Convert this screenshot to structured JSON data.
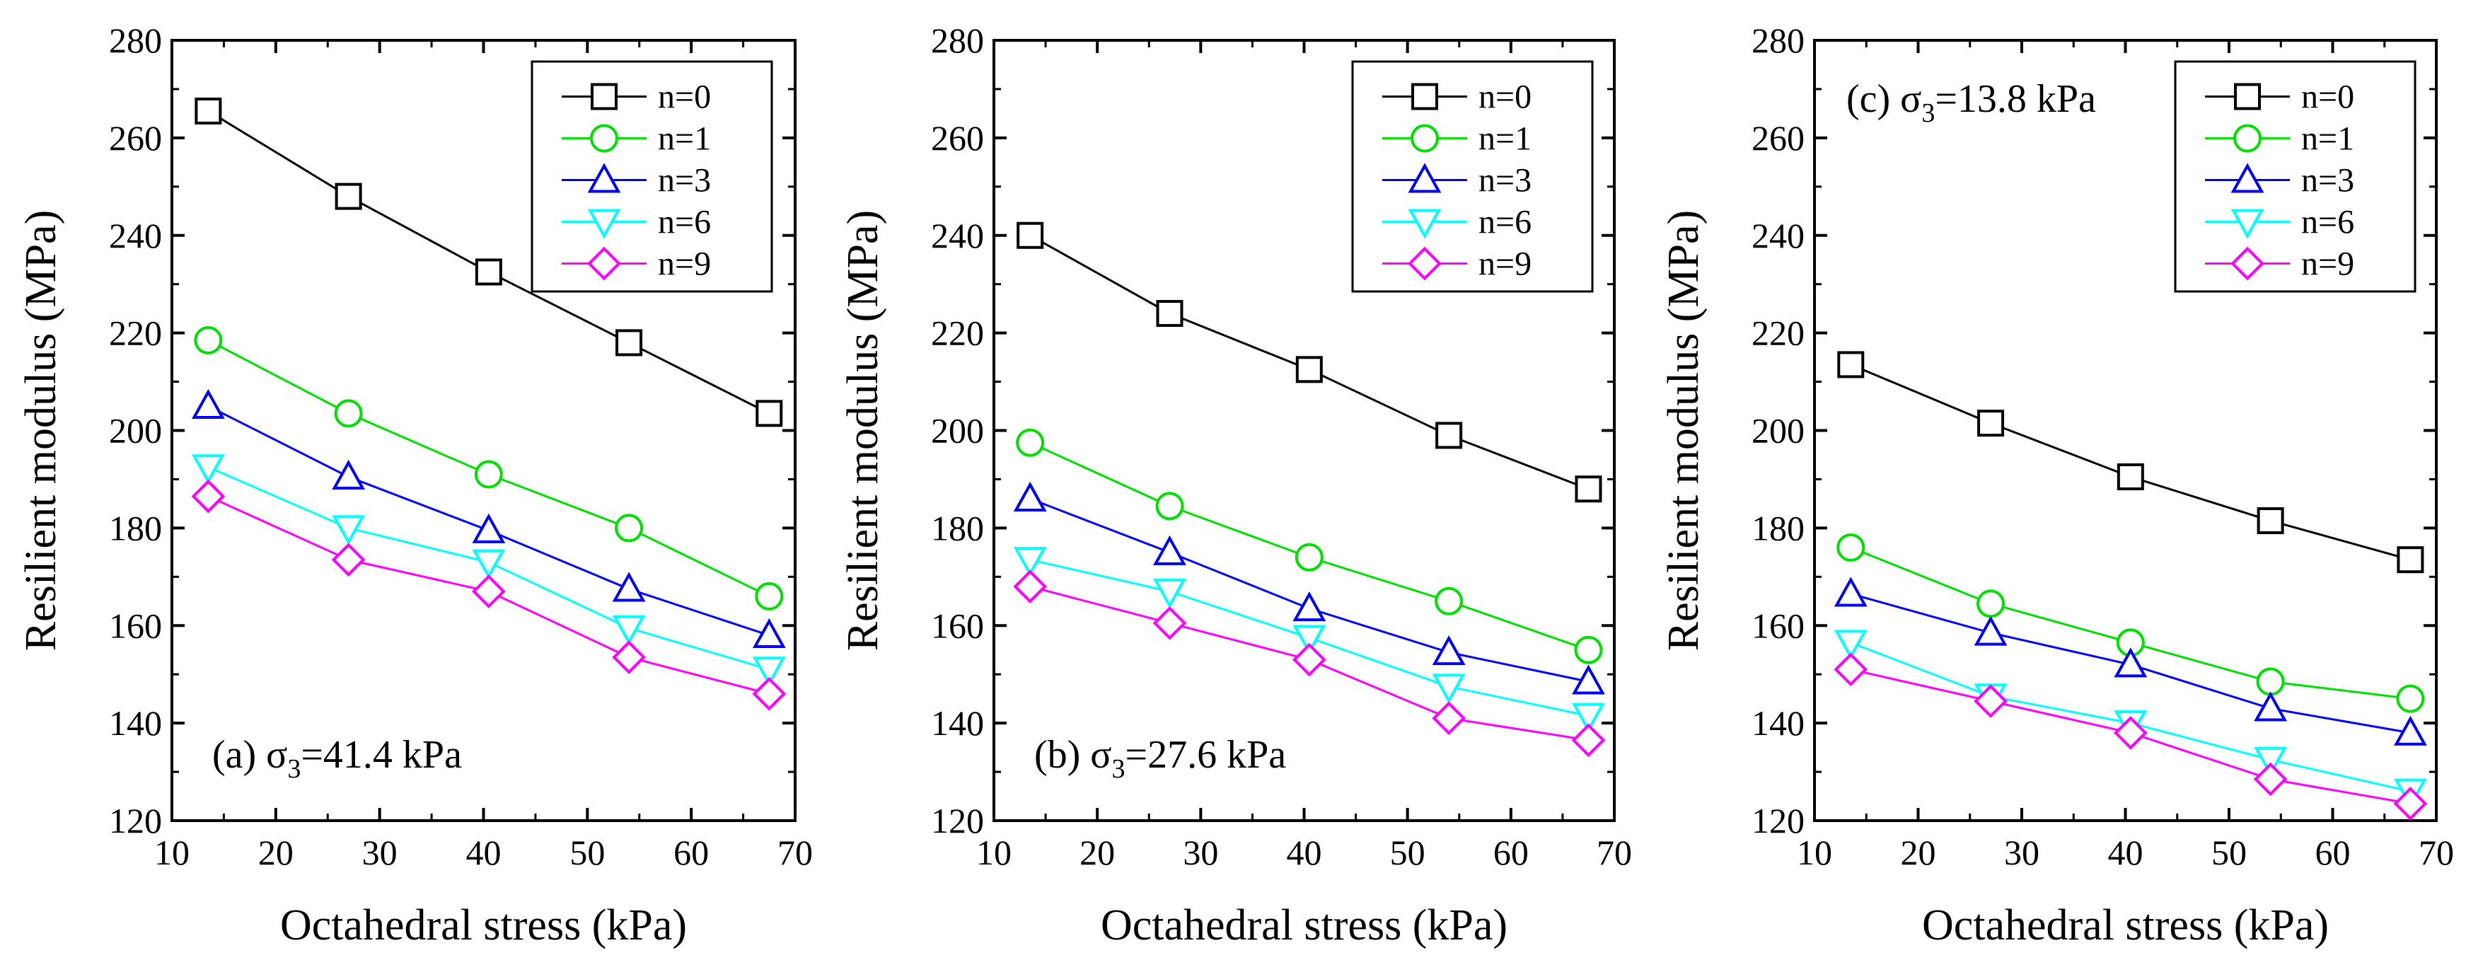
{
  "chart_data": [
    {
      "type": "line",
      "title": "",
      "annotation": {
        "prefix": "(a) ",
        "sigma": "σ",
        "sub": "3",
        "rest": "=41.4 kPa"
      },
      "xlabel": "Octahedral stress (kPa)",
      "ylabel": "Resilient modulus (MPa)",
      "xlim": [
        10,
        70
      ],
      "ylim": [
        120,
        280
      ],
      "xticks": [
        10,
        20,
        30,
        40,
        50,
        60,
        70
      ],
      "yticks": [
        120,
        140,
        160,
        180,
        200,
        220,
        240,
        260,
        280
      ],
      "x": [
        13.5,
        27.0,
        40.5,
        54.0,
        67.5
      ],
      "legend_position": "top-right",
      "series": [
        {
          "name": "n=0",
          "color": "#000000",
          "marker": "square",
          "values": [
            265.5,
            248,
            232.5,
            218,
            203.5
          ]
        },
        {
          "name": "n=1",
          "color": "#00e000",
          "marker": "circle",
          "values": [
            218.5,
            203.5,
            191,
            180,
            166
          ]
        },
        {
          "name": "n=3",
          "color": "#0000ff",
          "marker": "triangle-up",
          "values": [
            205,
            190.5,
            179.5,
            167.5,
            158
          ]
        },
        {
          "name": "n=6",
          "color": "#00ffff",
          "marker": "triangle-down",
          "values": [
            192.5,
            180,
            173,
            159.5,
            151
          ]
        },
        {
          "name": "n=9",
          "color": "#ff00ff",
          "marker": "diamond",
          "values": [
            186.5,
            173.5,
            167,
            153.5,
            146
          ]
        }
      ]
    },
    {
      "type": "line",
      "title": "",
      "annotation": {
        "prefix": "(b) ",
        "sigma": "σ",
        "sub": "3",
        "rest": "=27.6 kPa"
      },
      "xlabel": "Octahedral stress (kPa)",
      "ylabel": "Resilient modulus (MPa)",
      "xlim": [
        10,
        70
      ],
      "ylim": [
        120,
        280
      ],
      "xticks": [
        10,
        20,
        30,
        40,
        50,
        60,
        70
      ],
      "yticks": [
        120,
        140,
        160,
        180,
        200,
        220,
        240,
        260,
        280
      ],
      "x": [
        13.5,
        27.0,
        40.5,
        54.0,
        67.5
      ],
      "legend_position": "top-right",
      "series": [
        {
          "name": "n=0",
          "color": "#000000",
          "marker": "square",
          "values": [
            240,
            224,
            212.5,
            199,
            188
          ]
        },
        {
          "name": "n=1",
          "color": "#00e000",
          "marker": "circle",
          "values": [
            197.5,
            184.5,
            174,
            165,
            155
          ]
        },
        {
          "name": "n=3",
          "color": "#0000ff",
          "marker": "triangle-up",
          "values": [
            186,
            175,
            163.5,
            154.5,
            148.5
          ]
        },
        {
          "name": "n=6",
          "color": "#00ffff",
          "marker": "triangle-down",
          "values": [
            173.5,
            167,
            157.5,
            147.5,
            141.5
          ]
        },
        {
          "name": "n=9",
          "color": "#ff00ff",
          "marker": "diamond",
          "values": [
            168,
            160.5,
            153,
            141,
            136.5
          ]
        }
      ]
    },
    {
      "type": "line",
      "title": "",
      "annotation": {
        "prefix": "(c) ",
        "sigma": "σ",
        "sub": "3",
        "rest": "=13.8 kPa"
      },
      "xlabel": "Octahedral stress (kPa)",
      "ylabel": "Resilient modulus (MPa)",
      "xlim": [
        10,
        70
      ],
      "ylim": [
        120,
        280
      ],
      "xticks": [
        10,
        20,
        30,
        40,
        50,
        60,
        70
      ],
      "yticks": [
        120,
        140,
        160,
        180,
        200,
        220,
        240,
        260,
        280
      ],
      "x": [
        13.5,
        27.0,
        40.5,
        54.0,
        67.5
      ],
      "legend_position": "top-right",
      "series": [
        {
          "name": "n=0",
          "color": "#000000",
          "marker": "square",
          "values": [
            213.5,
            201.5,
            190.5,
            181.5,
            173.5
          ]
        },
        {
          "name": "n=1",
          "color": "#00e000",
          "marker": "circle",
          "values": [
            176,
            164.5,
            156.5,
            148.5,
            145
          ]
        },
        {
          "name": "n=3",
          "color": "#0000ff",
          "marker": "triangle-up",
          "values": [
            166.5,
            158.5,
            152,
            143,
            138
          ]
        },
        {
          "name": "n=6",
          "color": "#00ffff",
          "marker": "triangle-down",
          "values": [
            156.5,
            145.5,
            140,
            132.5,
            126
          ]
        },
        {
          "name": "n=9",
          "color": "#ff00ff",
          "marker": "diamond",
          "values": [
            151,
            144.5,
            138,
            128.5,
            123.5
          ]
        }
      ]
    }
  ]
}
